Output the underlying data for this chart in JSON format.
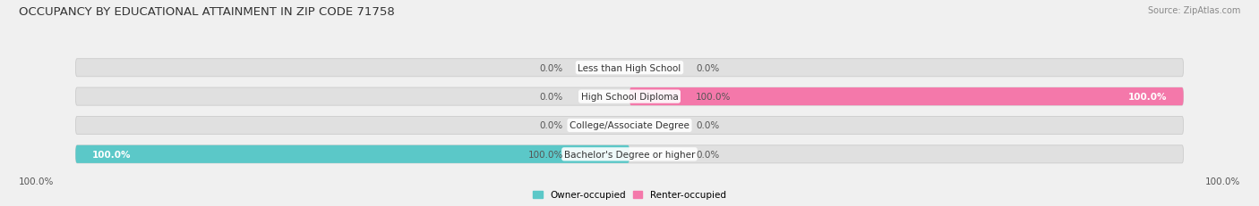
{
  "title": "OCCUPANCY BY EDUCATIONAL ATTAINMENT IN ZIP CODE 71758",
  "source": "Source: ZipAtlas.com",
  "categories": [
    "Less than High School",
    "High School Diploma",
    "College/Associate Degree",
    "Bachelor's Degree or higher"
  ],
  "owner_values": [
    0.0,
    0.0,
    0.0,
    100.0
  ],
  "renter_values": [
    0.0,
    100.0,
    0.0,
    0.0
  ],
  "owner_color": "#5BC8C8",
  "renter_color": "#F478AA",
  "background_color": "#f0f0f0",
  "bar_bg_color": "#e0e0e0",
  "bar_border_color": "#cccccc",
  "title_fontsize": 9.5,
  "label_fontsize": 7.5,
  "value_fontsize": 7.5,
  "source_fontsize": 7.0,
  "legend_fontsize": 7.5,
  "figsize": [
    14.06,
    2.32
  ],
  "dpi": 100,
  "bar_height": 0.62,
  "n_cats": 4,
  "bottom_labels": [
    "100.0%",
    "100.0%"
  ]
}
